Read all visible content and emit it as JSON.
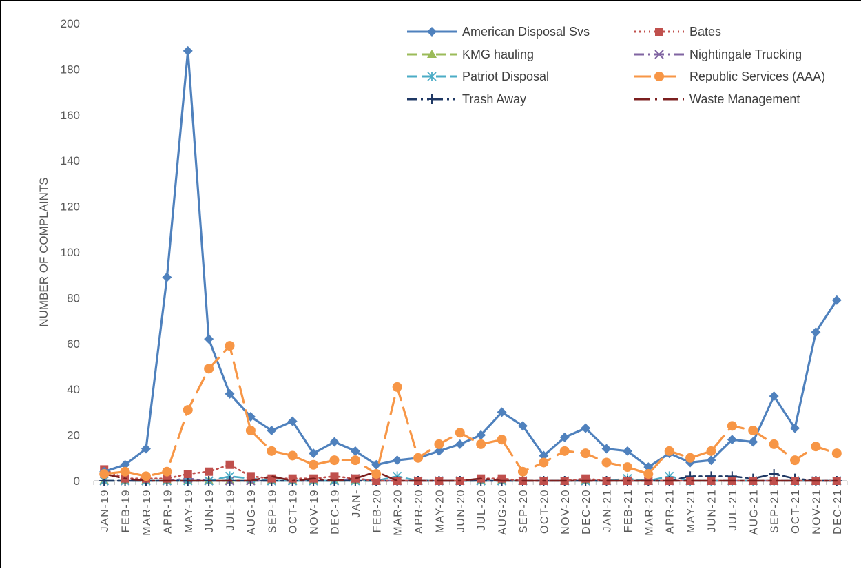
{
  "chart_data": {
    "type": "line",
    "title": "",
    "xlabel": "",
    "ylabel": "NUMBER OF COMPLAINTS",
    "ylim": [
      0,
      200
    ],
    "yticks": [
      0,
      20,
      40,
      60,
      80,
      100,
      120,
      140,
      160,
      180,
      200
    ],
    "grid": false,
    "legend_position": "top-right",
    "categories": [
      "JAN-19",
      "FEB-19",
      "MAR-19",
      "APR-19",
      "MAY-19",
      "JUN-19",
      "JUL-19",
      "AUG-19",
      "SEP-19",
      "OCT-19",
      "NOV-19",
      "DEC-19",
      "JAN-",
      "FEB-20",
      "MAR-20",
      "APR-20",
      "MAY-20",
      "JUN-20",
      "JUL-20",
      "AUG-20",
      "SEP-20",
      "OCT-20",
      "NOV-20",
      "DEC-20",
      "JAN-21",
      "FEB-21",
      "MAR-21",
      "APR-21",
      "MAY-21",
      "JUN-21",
      "JUL-21",
      "AUG-21",
      "SEP-21",
      "OCT-21",
      "NOV-21",
      "DEC-21"
    ],
    "series": [
      {
        "name": "American Disposal Svs",
        "color": "#4F81BD",
        "dash": "solid",
        "marker": "diamond",
        "values": [
          4,
          7,
          14,
          89,
          188,
          62,
          38,
          28,
          22,
          26,
          12,
          17,
          13,
          7,
          9,
          10,
          13,
          16,
          20,
          30,
          24,
          11,
          19,
          23,
          14,
          13,
          6,
          12,
          8,
          9,
          18,
          17,
          37,
          23,
          65,
          79
        ]
      },
      {
        "name": "Bates",
        "color": "#C0504D",
        "dash": "dot",
        "marker": "square",
        "values": [
          5,
          1,
          1,
          1,
          3,
          4,
          7,
          2,
          1,
          1,
          1,
          2,
          1,
          0,
          0,
          0,
          0,
          0,
          1,
          1,
          0,
          0,
          0,
          1,
          0,
          0,
          0,
          0,
          0,
          0,
          0,
          0,
          0,
          0,
          0,
          0
        ]
      },
      {
        "name": "KMG hauling",
        "color": "#9BBB59",
        "dash": "dash",
        "marker": "triangle",
        "values": [
          0,
          0,
          0,
          0,
          0,
          0,
          0,
          0,
          0,
          0,
          0,
          0,
          0,
          0,
          0,
          0,
          0,
          0,
          0,
          0,
          0,
          0,
          0,
          0,
          0,
          0,
          0,
          0,
          0,
          0,
          0,
          0,
          0,
          0,
          0,
          0
        ]
      },
      {
        "name": "Nightingale Trucking",
        "color": "#8064A2",
        "dash": "dashdot",
        "marker": "x",
        "values": [
          0,
          0,
          0,
          0,
          1,
          0,
          0,
          0,
          0,
          0,
          0,
          0,
          1,
          0,
          0,
          0,
          0,
          0,
          0,
          0,
          0,
          0,
          0,
          0,
          0,
          0,
          0,
          0,
          0,
          0,
          0,
          0,
          0,
          0,
          0,
          0
        ]
      },
      {
        "name": "Patriot Disposal",
        "color": "#4BACC6",
        "dash": "dash",
        "marker": "asterisk",
        "values": [
          0,
          0,
          0,
          0,
          0,
          0,
          2,
          1,
          0,
          0,
          0,
          0,
          0,
          0,
          2,
          0,
          0,
          0,
          0,
          0,
          0,
          0,
          0,
          0,
          0,
          1,
          0,
          2,
          0,
          0,
          0,
          0,
          0,
          0,
          0,
          0
        ]
      },
      {
        "name": "Republic Services (AAA)",
        "color": "#F79646",
        "dash": "longdash",
        "marker": "circle",
        "values": [
          3,
          4,
          2,
          4,
          31,
          49,
          59,
          22,
          13,
          11,
          7,
          9,
          9,
          3,
          41,
          10,
          16,
          21,
          16,
          18,
          4,
          8,
          13,
          12,
          8,
          6,
          3,
          13,
          10,
          13,
          24,
          22,
          16,
          9,
          15,
          12
        ]
      },
      {
        "name": "Trash Away",
        "color": "#1F3864",
        "dash": "dashdotdot",
        "marker": "plus",
        "values": [
          0,
          0,
          0,
          0,
          0,
          0,
          0,
          0,
          0,
          0,
          0,
          0,
          0,
          0,
          0,
          0,
          0,
          0,
          0,
          0,
          0,
          0,
          0,
          0,
          0,
          0,
          0,
          0,
          2,
          2,
          2,
          1,
          3,
          1,
          0,
          0
        ]
      },
      {
        "name": "Waste Management",
        "color": "#7B1F1F",
        "dash": "longdashdot",
        "marker": "none",
        "values": [
          3,
          1,
          0,
          0,
          0,
          0,
          0,
          0,
          2,
          0,
          1,
          0,
          1,
          4,
          0,
          0,
          0,
          0,
          1,
          0,
          0,
          0,
          0,
          0,
          0,
          0,
          0,
          0,
          0,
          0,
          0,
          0,
          0,
          0,
          0,
          0
        ]
      }
    ]
  }
}
